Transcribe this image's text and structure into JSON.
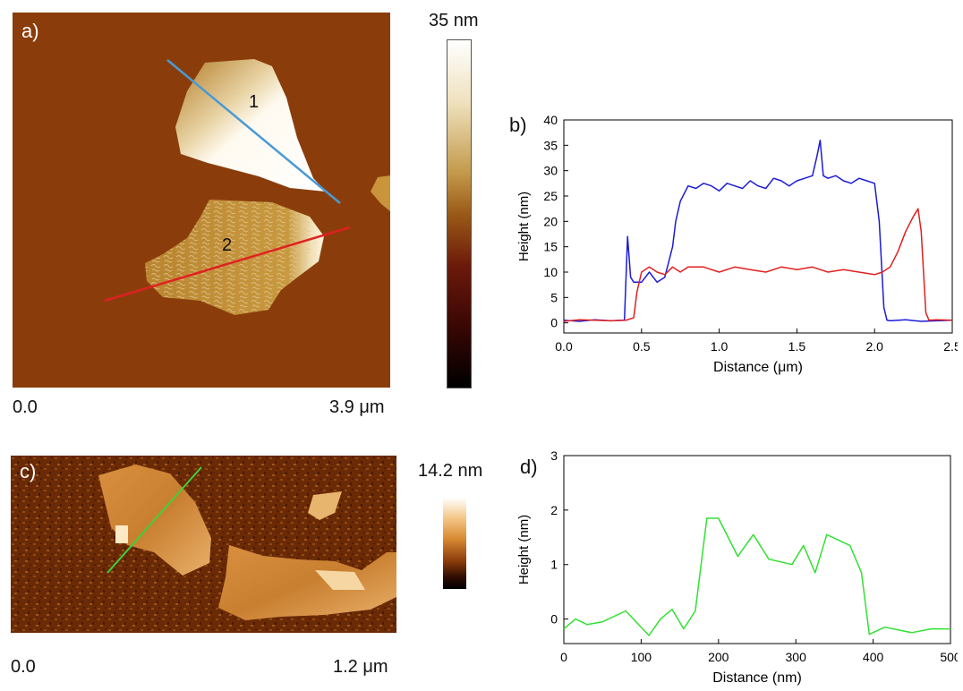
{
  "panels": {
    "a": {
      "label": "a)",
      "scale_min": "0.0",
      "scale_max": "3.9 μm",
      "colorbar_max": "35 nm",
      "flake_labels": [
        "1",
        "2"
      ],
      "colors": {
        "background": "#8a3d0b",
        "flake": "#b7812c",
        "flake_top": "#fdf7ea",
        "line1": "#4a9ad4",
        "line2": "#e02020"
      }
    },
    "c": {
      "label": "c)",
      "scale_min": "0.0",
      "scale_max": "1.2 μm",
      "colorbar_max": "14.2 nm",
      "colors": {
        "background": "#6b2a06",
        "flake": "#cf8637",
        "line": "#3cd23c"
      }
    }
  },
  "chart_data": [
    {
      "panel": "b)",
      "type": "line",
      "xlabel": "Distance (μm)",
      "ylabel": "Height (nm)",
      "xlim": [
        0,
        2.5
      ],
      "ylim": [
        -2,
        40
      ],
      "xticks": [
        "0.0",
        "0.5",
        "1.0",
        "1.5",
        "2.0",
        "2.5"
      ],
      "yticks": [
        "0",
        "5",
        "10",
        "15",
        "20",
        "25",
        "30",
        "35",
        "40"
      ],
      "series": [
        {
          "color": "#1c1cd6",
          "x": [
            0,
            0.1,
            0.2,
            0.3,
            0.39,
            0.41,
            0.43,
            0.45,
            0.5,
            0.55,
            0.6,
            0.65,
            0.7,
            0.72,
            0.75,
            0.8,
            0.85,
            0.9,
            0.95,
            1.0,
            1.05,
            1.1,
            1.15,
            1.2,
            1.25,
            1.3,
            1.35,
            1.4,
            1.45,
            1.5,
            1.55,
            1.6,
            1.63,
            1.65,
            1.67,
            1.7,
            1.75,
            1.8,
            1.85,
            1.9,
            1.95,
            2.0,
            2.03,
            2.06,
            2.08,
            2.1,
            2.2,
            2.3,
            2.4,
            2.5
          ],
          "y": [
            0.5,
            0.3,
            0.6,
            0.4,
            0.5,
            17,
            9,
            8,
            8,
            10,
            8,
            9,
            15,
            20,
            24,
            27,
            26.5,
            27.5,
            27,
            26,
            27.5,
            27,
            26.5,
            28,
            27,
            26.5,
            28.5,
            28,
            27,
            28,
            28.5,
            29,
            33,
            36,
            29,
            28.5,
            29,
            28,
            27.5,
            28.5,
            28,
            27.5,
            20,
            3,
            0.5,
            0.4,
            0.6,
            0.3,
            0.4,
            0.5
          ]
        },
        {
          "color": "#e02020",
          "x": [
            0,
            0.1,
            0.2,
            0.3,
            0.4,
            0.45,
            0.47,
            0.5,
            0.55,
            0.6,
            0.65,
            0.7,
            0.75,
            0.8,
            0.9,
            1.0,
            1.1,
            1.2,
            1.3,
            1.4,
            1.5,
            1.6,
            1.7,
            1.8,
            1.9,
            2.0,
            2.05,
            2.1,
            2.15,
            2.2,
            2.25,
            2.28,
            2.3,
            2.33,
            2.35,
            2.4,
            2.5
          ],
          "y": [
            0.3,
            0.6,
            0.5,
            0.4,
            0.5,
            1,
            6,
            10,
            11,
            10,
            9.5,
            11,
            10,
            11,
            11,
            10,
            11,
            10.5,
            10,
            11,
            10.5,
            11,
            10,
            10.5,
            10,
            9.5,
            10,
            11,
            14,
            18,
            21,
            22.5,
            18,
            2,
            0.5,
            0.6,
            0.5
          ]
        }
      ]
    },
    {
      "panel": "d)",
      "type": "line",
      "xlabel": "Distance (nm)",
      "ylabel": "Height (nm)",
      "xlim": [
        0,
        500
      ],
      "ylim": [
        -0.45,
        3
      ],
      "xticks": [
        "0",
        "100",
        "200",
        "300",
        "400",
        "500"
      ],
      "yticks": [
        "0",
        "1",
        "2",
        "3"
      ],
      "series": [
        {
          "color": "#33e033",
          "x": [
            0,
            15,
            30,
            50,
            80,
            110,
            125,
            140,
            155,
            170,
            185,
            200,
            225,
            245,
            265,
            295,
            310,
            325,
            340,
            370,
            385,
            395,
            415,
            450,
            475,
            500
          ],
          "y": [
            -0.18,
            0.0,
            -0.1,
            -0.05,
            0.15,
            -0.3,
            0.0,
            0.18,
            -0.18,
            0.15,
            1.85,
            1.85,
            1.15,
            1.55,
            1.1,
            1.0,
            1.35,
            0.85,
            1.55,
            1.35,
            0.85,
            -0.28,
            -0.15,
            -0.25,
            -0.18,
            -0.18
          ]
        }
      ]
    }
  ]
}
